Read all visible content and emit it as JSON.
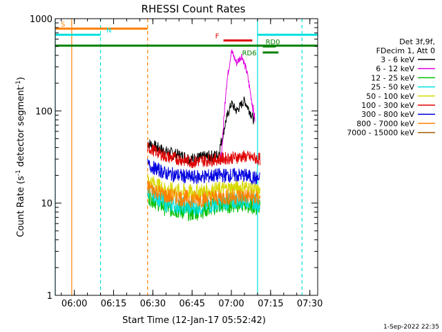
{
  "chart_data": {
    "type": "line",
    "title": "RHESSI Count Rates",
    "xlabel": "Start Time (12-Jan-17 05:52:42)",
    "ylabel": "Count Rate (s⁻¹ detector segment⁻¹)",
    "ylabel_parts": {
      "main": "Count Rate (s",
      "sup1": "-1",
      "mid": " detector segment",
      "sup2": "-1",
      "end": ")"
    },
    "y_scale": "log",
    "ylim": [
      1,
      1000
    ],
    "xlim": [
      "05:52:42",
      "07:33:00"
    ],
    "x_ticks": [
      "06:00",
      "06:15",
      "06:30",
      "06:45",
      "07:00",
      "07:15",
      "07:30"
    ],
    "y_ticks": [
      "1",
      "10",
      "100",
      "1000"
    ],
    "legend": {
      "placement": "right",
      "header": [
        "Det 3f,9f,",
        "FDecim 1, Att 0"
      ],
      "entries": [
        {
          "label": "3 - 6 keV",
          "color": "#000000"
        },
        {
          "label": "6 - 12 keV",
          "color": "#e000e0"
        },
        {
          "label": "12 - 25 keV",
          "color": "#00c000"
        },
        {
          "label": "25 - 50 keV",
          "color": "#00e0e0"
        },
        {
          "label": "50 - 100 keV",
          "color": "#d8d800"
        },
        {
          "label": "100 - 300 keV",
          "color": "#e00000"
        },
        {
          "label": "300 - 800 keV",
          "color": "#0000e0"
        },
        {
          "label": "800 - 7000 keV",
          "color": "#ff8000"
        },
        {
          "label": "7000 - 15000 keV",
          "color": "#a05a00"
        }
      ]
    },
    "segments": [
      {
        "name": "3 - 6 keV",
        "color": "#000000",
        "points": [
          [
            "06:28",
            45
          ],
          [
            "06:35",
            36
          ],
          [
            "06:45",
            30
          ],
          [
            "06:55",
            33
          ],
          [
            "06:58",
            80
          ],
          [
            "07:00",
            120
          ],
          [
            "07:02",
            100
          ],
          [
            "07:05",
            130
          ],
          [
            "07:07",
            100
          ],
          [
            "07:09",
            75
          ]
        ]
      },
      {
        "name": "6 - 12 keV",
        "color": "#e000e0",
        "points": [
          [
            "06:56",
            28
          ],
          [
            "06:58",
            180
          ],
          [
            "07:00",
            450
          ],
          [
            "07:02",
            330
          ],
          [
            "07:04",
            400
          ],
          [
            "07:06",
            260
          ],
          [
            "07:08",
            120
          ],
          [
            "07:09",
            80
          ]
        ]
      },
      {
        "name": "12 - 25 keV",
        "color": "#00c000",
        "points": [
          [
            "06:28",
            12
          ],
          [
            "06:35",
            9
          ],
          [
            "06:45",
            8
          ],
          [
            "06:55",
            9.5
          ],
          [
            "07:05",
            10
          ],
          [
            "07:11",
            9
          ]
        ]
      },
      {
        "name": "25 - 50 keV",
        "color": "#00e0e0",
        "points": [
          [
            "06:28",
            14
          ],
          [
            "06:35",
            10
          ],
          [
            "06:45",
            9
          ],
          [
            "06:55",
            10
          ],
          [
            "07:05",
            11
          ],
          [
            "07:11",
            10
          ]
        ]
      },
      {
        "name": "50 - 100 keV",
        "color": "#d8d800",
        "points": [
          [
            "06:28",
            18
          ],
          [
            "06:35",
            14
          ],
          [
            "06:45",
            13
          ],
          [
            "06:55",
            14
          ],
          [
            "07:05",
            15
          ],
          [
            "07:11",
            13
          ]
        ]
      },
      {
        "name": "100 - 300 keV",
        "color": "#e00000",
        "points": [
          [
            "06:28",
            40
          ],
          [
            "06:35",
            32
          ],
          [
            "06:45",
            28
          ],
          [
            "06:55",
            30
          ],
          [
            "07:05",
            32
          ],
          [
            "07:11",
            30
          ]
        ]
      },
      {
        "name": "300 - 800 keV",
        "color": "#0000e0",
        "points": [
          [
            "06:28",
            26
          ],
          [
            "06:35",
            21
          ],
          [
            "06:45",
            19
          ],
          [
            "06:55",
            20
          ],
          [
            "07:05",
            20
          ],
          [
            "07:11",
            18
          ]
        ]
      },
      {
        "name": "800 - 7000 keV",
        "color": "#ff8000",
        "points": [
          [
            "06:28",
            15
          ],
          [
            "06:35",
            12
          ],
          [
            "06:45",
            11
          ],
          [
            "06:55",
            11.5
          ],
          [
            "07:05",
            12
          ],
          [
            "07:11",
            11
          ]
        ]
      }
    ],
    "flag_bars": [
      {
        "label": "S",
        "color": "#ff8000",
        "start": "05:52:42",
        "end": "06:28",
        "y": 780
      },
      {
        "label": "N",
        "color": "#00e0e0",
        "start": "05:52:42",
        "end": "06:10",
        "y": 670
      },
      {
        "label": "",
        "color": "#00e0e0",
        "start": "07:10",
        "end": "07:33",
        "y": 670
      },
      {
        "label": "",
        "color": "#008000",
        "start": "05:52:42",
        "end": "07:33",
        "y": 510
      },
      {
        "label": "F",
        "color": "#e00000",
        "start": "06:57",
        "end": "07:08",
        "y": 580
      },
      {
        "label": "RD6",
        "color": "#008000",
        "start": "07:12",
        "end": "07:18",
        "y": 430
      },
      {
        "label": "RD0",
        "color": "#008000",
        "start": "07:12",
        "end": "07:17",
        "y": 500
      }
    ],
    "vertical_lines": [
      {
        "time": "05:52:42",
        "color": "#00e0e0",
        "style": "solid"
      },
      {
        "time": "05:59",
        "color": "#ff8000",
        "style": "solid"
      },
      {
        "time": "06:10",
        "color": "#00e0e0",
        "style": "dashed"
      },
      {
        "time": "06:28",
        "color": "#ff8000",
        "style": "dashed"
      },
      {
        "time": "07:10",
        "color": "#00e0e0",
        "style": "solid"
      },
      {
        "time": "07:27",
        "color": "#00e0e0",
        "style": "dashed"
      }
    ]
  },
  "footer": {
    "timestamp": "1-Sep-2022 22:35"
  }
}
